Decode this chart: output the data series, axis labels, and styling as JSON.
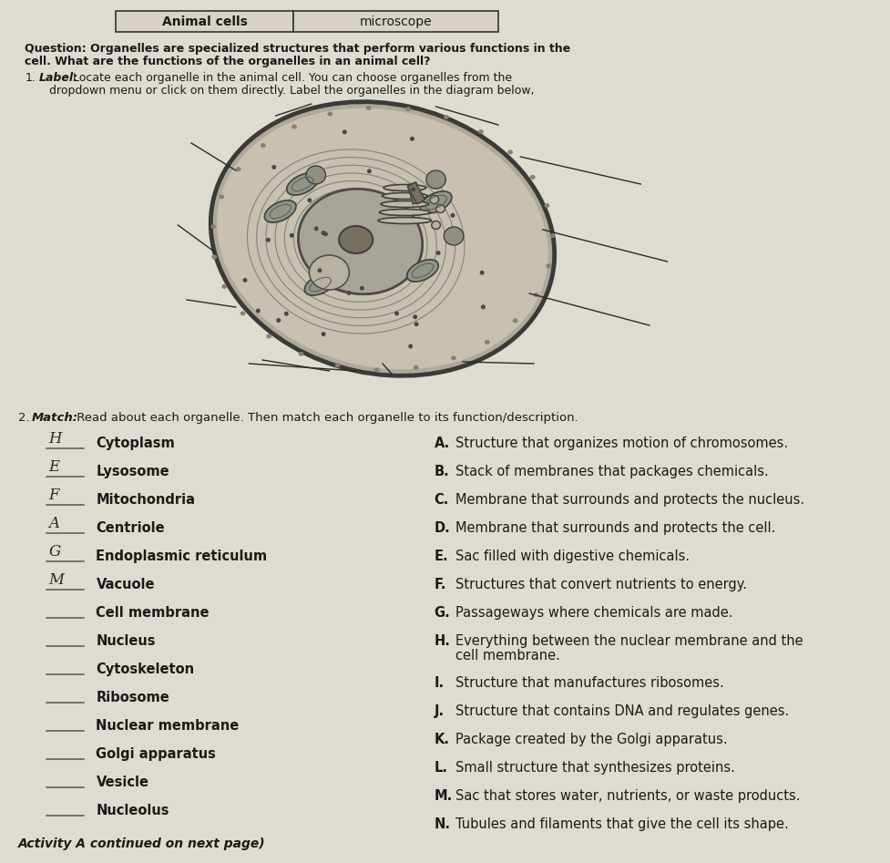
{
  "page_bg": "#e0dbd2",
  "header_text1": "Animal cells",
  "header_text2": "microscope",
  "question_line1": "Question: Organelles are specialized structures that perform various functions in the",
  "question_line2": "cell. What are the functions of the organelles in an animal cell?",
  "inst1_label": "Label:",
  "inst1_rest1": " Locate each organelle in the animal cell. You can choose organelles from the",
  "inst1_rest2": "dropdown menu or click on them directly. Label the organelles in the diagram below,",
  "inst2_label": "Match:",
  "inst2_rest": " Read about each organelle. Then match each organelle to its function/description.",
  "left_items": [
    {
      "letter": "H",
      "name": "Cytoplasm"
    },
    {
      "letter": "E",
      "name": "Lysosome"
    },
    {
      "letter": "F",
      "name": "Mitochondria"
    },
    {
      "letter": "A",
      "name": "Centriole"
    },
    {
      "letter": "G",
      "name": "Endoplasmic reticulum"
    },
    {
      "letter": "M",
      "name": "Vacuole"
    },
    {
      "letter": "",
      "name": "Cell membrane"
    },
    {
      "letter": "",
      "name": "Nucleus"
    },
    {
      "letter": "",
      "name": "Cytoskeleton"
    },
    {
      "letter": "",
      "name": "Ribosome"
    },
    {
      "letter": "",
      "name": "Nuclear membrane"
    },
    {
      "letter": "",
      "name": "Golgi apparatus"
    },
    {
      "letter": "",
      "name": "Vesicle"
    },
    {
      "letter": "",
      "name": "Nucleolus"
    }
  ],
  "right_items": [
    {
      "letter": "A.",
      "desc": "Structure that organizes motion of chromosomes."
    },
    {
      "letter": "B.",
      "desc": "Stack of membranes that packages chemicals."
    },
    {
      "letter": "C.",
      "desc": "Membrane that surrounds and protects the nucleus."
    },
    {
      "letter": "D.",
      "desc": "Membrane that surrounds and protects the cell."
    },
    {
      "letter": "E.",
      "desc": "Sac filled with digestive chemicals."
    },
    {
      "letter": "F.",
      "desc": "Structures that convert nutrients to energy."
    },
    {
      "letter": "G.",
      "desc": "Passageways where chemicals are made."
    },
    {
      "letter": "H.",
      "desc1": "Everything between the nuclear membrane and the",
      "desc2": "cell membrane."
    },
    {
      "letter": "I.",
      "desc": "Structure that manufactures ribosomes."
    },
    {
      "letter": "J.",
      "desc": "Structure that contains DNA and regulates genes."
    },
    {
      "letter": "K.",
      "desc": "Package created by the Golgi apparatus."
    },
    {
      "letter": "L.",
      "desc": "Small structure that synthesizes proteins."
    },
    {
      "letter": "M.",
      "desc": "Sac that stores water, nutrients, or waste products."
    },
    {
      "letter": "N.",
      "desc": "Tubules and filaments that give the cell its shape."
    }
  ],
  "footer_text": "Activity A continued on next page)",
  "text_color": "#1a1a1a",
  "line_color": "#555555"
}
